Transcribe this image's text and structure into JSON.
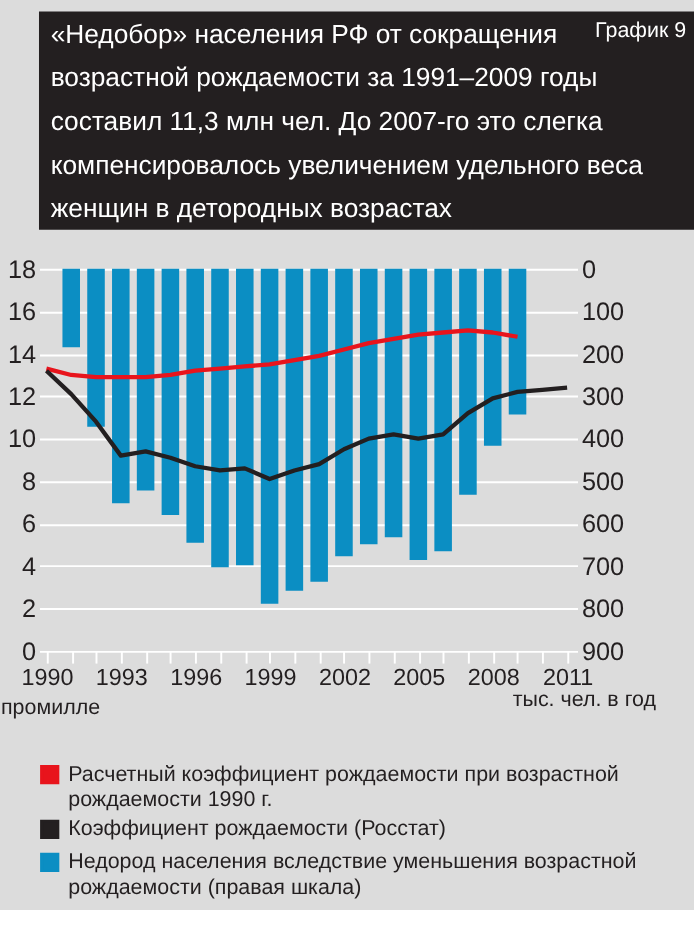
{
  "chart_data": {
    "type": "line",
    "title": "«Недобор» населения РФ от сокращения возрастной рождаемости за 1991–2009 годы составил 11,3 млн чел. До 2007-го это слегка компенсировалось увеличением удельного веса женщин в детородных возрастах",
    "annotations": [
      "График 9"
    ],
    "ylabel": "промилле",
    "y2label": "тыс. чел. в год",
    "xlim": [
      1989.7,
      2011.4
    ],
    "xticks": [
      1990,
      {
        "value": 1991,
        "label": null
      },
      {
        "value": 1992,
        "label": null
      },
      1993,
      {
        "value": 1994,
        "label": null
      },
      {
        "value": 1995,
        "label": null
      },
      1996,
      {
        "value": 1997,
        "label": null
      },
      {
        "value": 1998,
        "label": null
      },
      1999,
      {
        "value": 2000,
        "label": null
      },
      {
        "value": 2001,
        "label": null
      },
      2002,
      {
        "value": 2003,
        "label": null
      },
      {
        "value": 2004,
        "label": null
      },
      2005,
      {
        "value": 2006,
        "label": null
      },
      {
        "value": 2007,
        "label": null
      },
      2008,
      {
        "value": 2009,
        "label": null
      },
      {
        "value": 2010,
        "label": null
      },
      2011
    ],
    "ylim": [
      0,
      18
    ],
    "yticks": [
      0,
      2,
      4,
      6,
      8,
      10,
      12,
      14,
      16,
      18
    ],
    "y2lim": [
      900,
      0
    ],
    "y2ticks": [
      0,
      100,
      200,
      300,
      400,
      500,
      600,
      700,
      800,
      900
    ],
    "grid": "y",
    "legend": "bottom",
    "series": [
      {
        "name": "Расчетный коэффициент рождаемости при возрастной рождаемости 1990 г.",
        "color": "#e8141c",
        "x": [
          1990,
          1991,
          1992,
          1993,
          1994,
          1995,
          1996,
          1997,
          1998,
          1999,
          2000,
          2001,
          2002,
          2003,
          2004,
          2005,
          2006,
          2007,
          2008,
          2009
        ],
        "values": [
          13.3,
          13.0,
          12.9,
          12.9,
          12.9,
          13.0,
          13.2,
          13.3,
          13.4,
          13.5,
          13.7,
          13.9,
          14.2,
          14.5,
          14.7,
          14.9,
          15.0,
          15.1,
          15.0,
          14.8
        ]
      },
      {
        "name": "Коэффициент рождаемости (Росстат)",
        "color": "#231f20",
        "x": [
          1990,
          1991,
          1992,
          1993,
          1994,
          1995,
          1996,
          1997,
          1998,
          1999,
          2000,
          2001,
          2002,
          2003,
          2004,
          2005,
          2006,
          2007,
          2008,
          2009,
          2010,
          2011
        ],
        "values": [
          13.2,
          12.1,
          10.8,
          9.2,
          9.4,
          9.1,
          8.7,
          8.5,
          8.6,
          8.1,
          8.5,
          8.8,
          9.5,
          10.0,
          10.2,
          10.0,
          10.2,
          11.2,
          11.9,
          12.2,
          12.3,
          12.4
        ]
      },
      {
        "name": "Недород населения вследствие уменьшения возрастной рождаемости (правая шкала)",
        "type": "bar",
        "axis": "y2",
        "color": "#0b8ec3",
        "x": [
          1991,
          1992,
          1993,
          1994,
          1995,
          1996,
          1997,
          1998,
          1999,
          2000,
          2001,
          2002,
          2003,
          2004,
          2005,
          2006,
          2007,
          2008,
          2009
        ],
        "values": [
          185,
          372,
          552,
          522,
          580,
          645,
          703,
          698,
          789,
          758,
          737,
          677,
          649,
          632,
          686,
          665,
          532,
          417,
          343
        ]
      }
    ]
  }
}
